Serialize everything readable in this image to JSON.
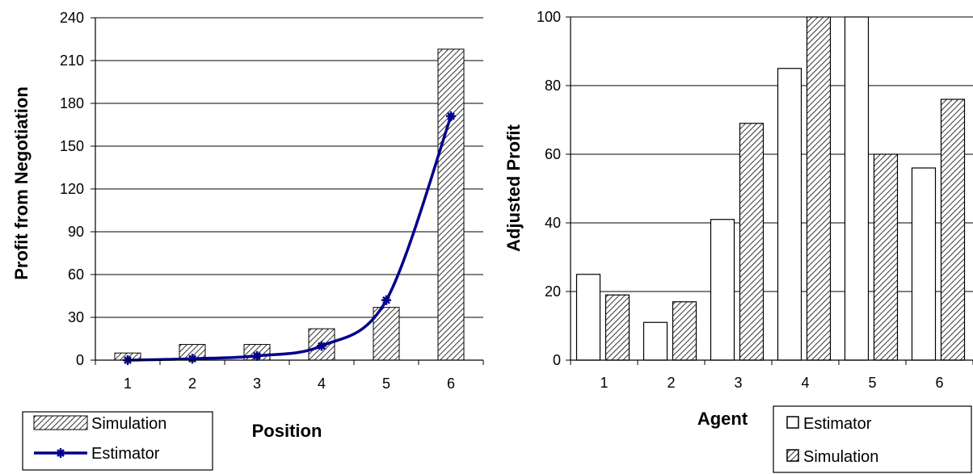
{
  "chart_data": [
    {
      "type": "bar",
      "categories": [
        "1",
        "2",
        "3",
        "4",
        "5",
        "6"
      ],
      "series": [
        {
          "name": "Simulation",
          "kind": "bar",
          "pattern": "hatched",
          "values": [
            5,
            11,
            11,
            22,
            37,
            218
          ]
        },
        {
          "name": "Estimator",
          "kind": "line",
          "marker": "star",
          "color": "#00008b",
          "values": [
            0,
            1,
            3,
            10,
            42,
            171
          ]
        }
      ],
      "xlabel": "Position",
      "ylabel": "Profit from Negotiation",
      "ylim": [
        0,
        240
      ],
      "yticks": [
        "0",
        "30",
        "60",
        "90",
        "120",
        "150",
        "180",
        "210",
        "240"
      ],
      "grid": "horizontal",
      "legend_position": "bottom-left"
    },
    {
      "type": "bar",
      "categories": [
        "1",
        "2",
        "3",
        "4",
        "5",
        "6"
      ],
      "series": [
        {
          "name": "Estimator",
          "kind": "bar",
          "pattern": "white",
          "values": [
            25,
            11,
            41,
            85,
            100,
            56
          ]
        },
        {
          "name": "Simulation",
          "kind": "bar",
          "pattern": "hatched",
          "values": [
            19,
            17,
            69,
            100,
            60,
            76
          ]
        }
      ],
      "xlabel": "Agent",
      "ylabel": "Adjusted Profit",
      "ylim": [
        0,
        100
      ],
      "yticks": [
        "0",
        "20",
        "40",
        "60",
        "80",
        "100"
      ],
      "grid": "horizontal",
      "legend_position": "bottom-right"
    }
  ]
}
